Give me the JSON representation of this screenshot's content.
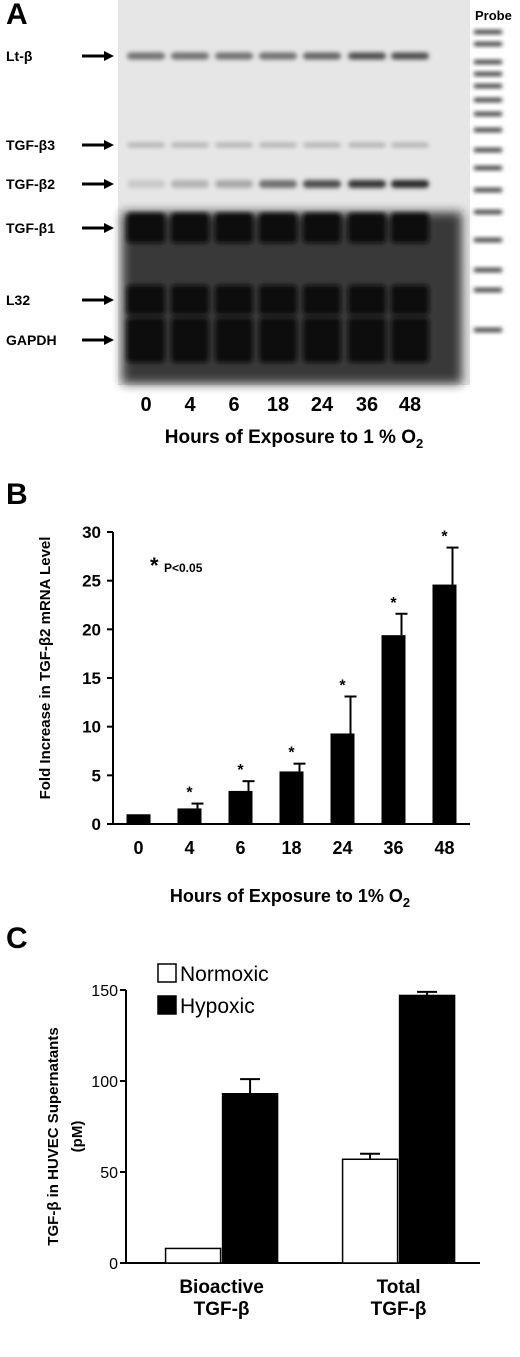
{
  "panel_a": {
    "letter": "A",
    "probe_label": "Probe",
    "band_labels": [
      "Lt-β",
      "TGF-β3",
      "TGF-β2",
      "TGF-β1",
      "L32",
      "GAPDH"
    ],
    "lane_labels": [
      "0",
      "4",
      "6",
      "18",
      "24",
      "36",
      "48"
    ],
    "xlabel_main": "Hours of Exposure to 1 % O",
    "xlabel_sub": "2",
    "band_intensity": {
      "Lt-β": [
        0.55,
        0.55,
        0.55,
        0.55,
        0.6,
        0.7,
        0.7
      ],
      "TGF-β3": [
        0.25,
        0.25,
        0.25,
        0.25,
        0.25,
        0.25,
        0.25
      ],
      "TGF-β2": [
        0.15,
        0.25,
        0.3,
        0.55,
        0.7,
        0.8,
        0.85
      ],
      "TGF-β1": [
        1,
        1,
        1,
        1,
        1,
        1,
        1
      ],
      "L32": [
        1,
        1,
        1,
        1,
        1,
        1,
        1
      ],
      "GAPDH": [
        1,
        1,
        1,
        1,
        1,
        1,
        1
      ]
    }
  },
  "chart_data": [
    {
      "type": "bar",
      "panel": "B",
      "categories": [
        "0",
        "4",
        "6",
        "18",
        "24",
        "36",
        "48"
      ],
      "values": [
        1.0,
        1.6,
        3.4,
        5.4,
        9.3,
        19.4,
        24.6
      ],
      "errors": [
        0.0,
        0.5,
        1.0,
        0.8,
        3.8,
        2.2,
        3.8
      ],
      "significant": [
        false,
        true,
        true,
        true,
        true,
        true,
        true
      ],
      "significance_marker": "*",
      "annotation_marker": "*",
      "annotation_text": "P<0.05",
      "xlabel": "Hours of Exposure to 1% O",
      "xlabel_sub": "2",
      "ylabel": "Fold Increase in TGF-β2 mRNA  Level",
      "ylim": [
        0,
        30
      ],
      "yticks": [
        "0",
        "5",
        "10",
        "15",
        "20",
        "25",
        "30"
      ],
      "bar_color": "#000000",
      "grid": false
    },
    {
      "type": "bar",
      "panel": "C",
      "categories": [
        "Bioactive TGF-β",
        "Total TGF-β"
      ],
      "category_lines": [
        [
          "Bioactive",
          "TGF-β"
        ],
        [
          "Total",
          "TGF-β"
        ]
      ],
      "series": [
        {
          "name": "Normoxic",
          "values": [
            8,
            57
          ],
          "errors": [
            0,
            3
          ],
          "color": "#ffffff"
        },
        {
          "name": "Hypoxic",
          "values": [
            93,
            147
          ],
          "errors": [
            8,
            2
          ],
          "color": "#000000"
        }
      ],
      "ylabel_lines": [
        "TGF-β in HUVEC Supernatants",
        "(pM)"
      ],
      "ylim": [
        0,
        150
      ],
      "yticks": [
        "0",
        "50",
        "100",
        "150"
      ],
      "legend_position": "top-left",
      "grid": false
    }
  ],
  "letters": {
    "b": "B",
    "c": "C"
  }
}
